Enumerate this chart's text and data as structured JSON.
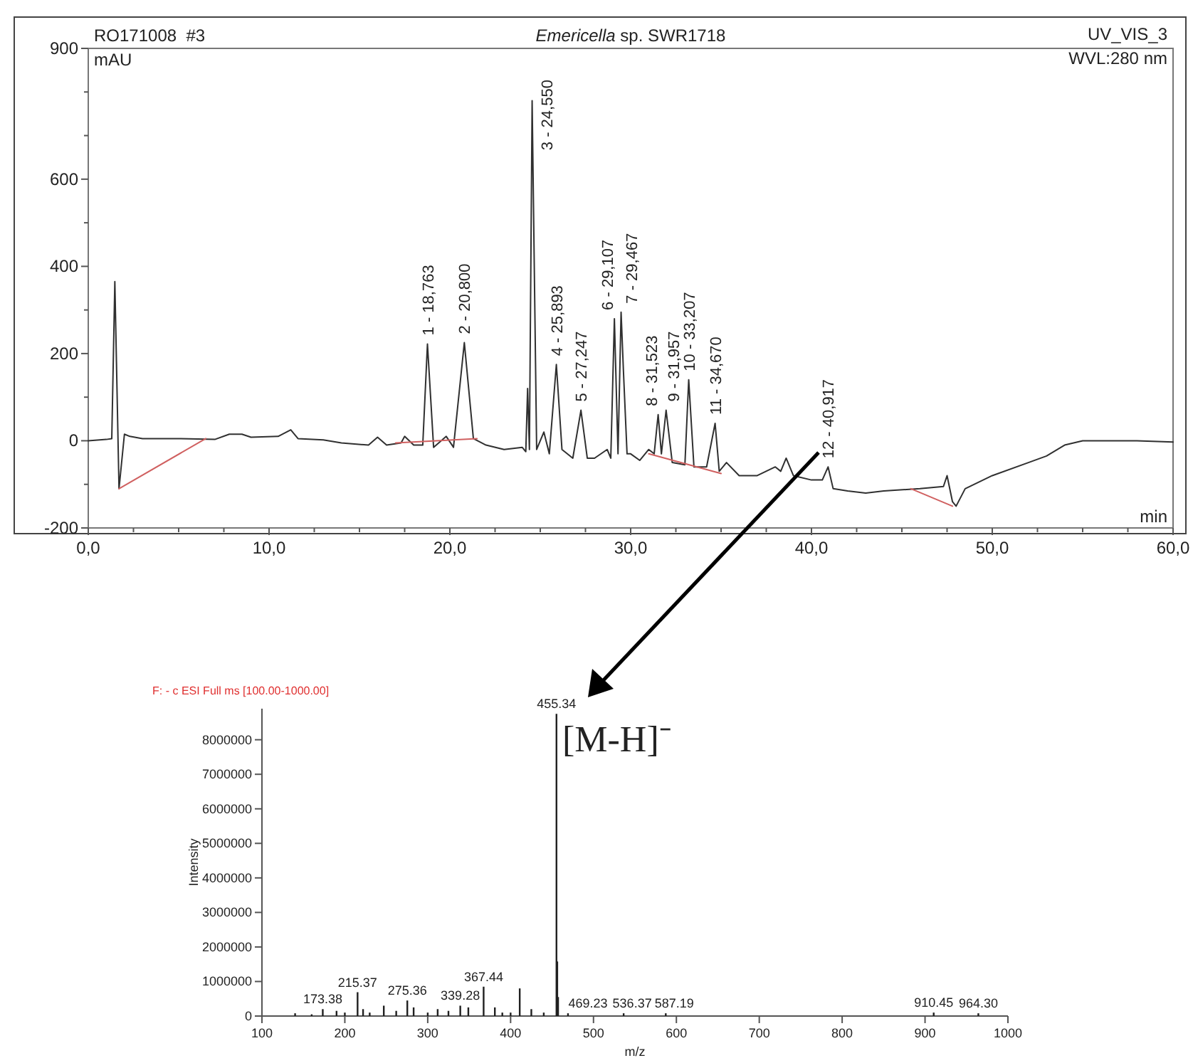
{
  "chart_data": [
    {
      "type": "line",
      "title": "Emericella sp. SWR1718",
      "xlabel": "min",
      "ylabel": "mAU",
      "xlim": [
        0,
        60
      ],
      "ylim": [
        -200,
        900
      ],
      "xticks": [
        {
          "value": 0,
          "label": "0,0"
        },
        {
          "value": 2.5,
          "label": null
        },
        {
          "value": 5,
          "label": null
        },
        {
          "value": 7.5,
          "label": null
        },
        {
          "value": 10,
          "label": "10,0"
        },
        {
          "value": 12.5,
          "label": null
        },
        {
          "value": 15,
          "label": null
        },
        {
          "value": 17.5,
          "label": null
        },
        {
          "value": 20,
          "label": "20,0"
        },
        {
          "value": 22.5,
          "label": null
        },
        {
          "value": 25,
          "label": null
        },
        {
          "value": 27.5,
          "label": null
        },
        {
          "value": 30,
          "label": "30,0"
        },
        {
          "value": 32.5,
          "label": null
        },
        {
          "value": 35,
          "label": null
        },
        {
          "value": 37.5,
          "label": null
        },
        {
          "value": 40,
          "label": "40,0"
        },
        {
          "value": 42.5,
          "label": null
        },
        {
          "value": 45,
          "label": null
        },
        {
          "value": 47.5,
          "label": null
        },
        {
          "value": 50,
          "label": "50,0"
        },
        {
          "value": 52.5,
          "label": null
        },
        {
          "value": 55,
          "label": null
        },
        {
          "value": 57.5,
          "label": null
        },
        {
          "value": 60,
          "label": "60,0"
        }
      ],
      "yticks": [
        -200,
        {
          "value": -100,
          "label": null
        },
        0,
        {
          "value": 100,
          "label": null
        },
        200,
        {
          "value": 300,
          "label": null
        },
        400,
        {
          "value": 500,
          "label": null
        },
        600,
        {
          "value": 700,
          "label": null
        },
        {
          "value": 800,
          "label": null
        },
        900
      ],
      "series": [
        {
          "color": "#303030",
          "x": [
            0,
            1,
            1.3,
            1.47,
            1.7,
            2.0,
            2.3,
            3,
            5,
            7,
            7.8,
            8.5,
            9,
            10.5,
            11.2,
            11.6,
            13,
            14,
            15.5,
            16,
            16.5,
            17.3,
            17.5,
            18,
            18.5,
            18.76,
            19.1,
            19.8,
            20.2,
            20.8,
            21.3,
            22,
            23,
            24,
            24.2,
            24.3,
            24.4,
            24.55,
            24.8,
            25.2,
            25.5,
            25.89,
            26.2,
            26.8,
            27.25,
            27.6,
            28,
            28.7,
            28.9,
            29.1,
            29.3,
            29.47,
            29.6,
            29.8,
            30,
            30.5,
            31,
            31.3,
            31.52,
            31.7,
            31.96,
            32.3,
            33,
            33.21,
            33.5,
            34.2,
            34.67,
            34.9,
            35.3,
            36,
            37,
            38,
            38.3,
            38.6,
            39,
            40,
            40.6,
            40.92,
            41.2,
            42,
            43,
            44,
            46,
            47.3,
            47.5,
            47.8,
            48,
            48.5,
            50,
            52,
            53,
            54,
            55,
            58,
            60
          ],
          "values": [
            0,
            3,
            5,
            365,
            -110,
            15,
            10,
            5,
            5,
            3,
            15,
            15,
            8,
            10,
            25,
            5,
            2,
            -5,
            -10,
            8,
            -10,
            -5,
            10,
            -10,
            -10,
            222,
            -15,
            10,
            -15,
            225,
            5,
            -10,
            -20,
            -15,
            -25,
            120,
            -20,
            780,
            -20,
            20,
            -30,
            175,
            -20,
            -40,
            70,
            -40,
            -40,
            -20,
            -40,
            280,
            -30,
            295,
            160,
            -30,
            -30,
            -45,
            -20,
            -30,
            60,
            -30,
            70,
            -50,
            -55,
            140,
            -60,
            -60,
            40,
            -70,
            -50,
            -80,
            -80,
            -60,
            -70,
            -40,
            -80,
            -90,
            -90,
            -60,
            -110,
            -115,
            -120,
            -115,
            -110,
            -105,
            -80,
            -140,
            -150,
            -110,
            -80,
            -50,
            -35,
            -10,
            0,
            0,
            -3
          ]
        },
        {
          "color": "#d06060",
          "x": [
            1.7,
            6.5,
            6.6,
            17,
            21.5,
            21.6,
            31,
            35,
            35.1,
            45.5,
            47.8
          ],
          "values": [
            -110,
            5,
            null,
            -5,
            5,
            null,
            -30,
            -75,
            null,
            -110,
            -150
          ]
        }
      ],
      "annotations": [
        "RO171008  #3",
        "UV_VIS_3",
        "WVL:280 nm",
        {
          "text": "1 - 18,763",
          "x": 18.76,
          "y": 222
        },
        {
          "text": "2 - 20,800",
          "x": 20.8,
          "y": 225
        },
        {
          "text": "3 - 24,550",
          "x": 24.55,
          "y": 780
        },
        {
          "text": "4 - 25,893",
          "x": 25.89,
          "y": 175
        },
        {
          "text": "5 - 27,247",
          "x": 27.25,
          "y": 70
        },
        {
          "text": "6 - 29,107",
          "x": 29.1,
          "y": 280
        },
        {
          "text": "7 - 29,467",
          "x": 29.47,
          "y": 295
        },
        {
          "text": "8 - 31,523",
          "x": 31.52,
          "y": 60
        },
        {
          "text": "9 - 31,957",
          "x": 31.96,
          "y": 70
        },
        {
          "text": "10 - 33,207",
          "x": 33.21,
          "y": 140
        },
        {
          "text": "11 - 34,670",
          "x": 34.67,
          "y": 40
        },
        {
          "text": "12 - 40,917",
          "x": 40.92,
          "y": -60
        }
      ]
    },
    {
      "type": "bar",
      "title": "F: - c ESI Full ms [100.00-1000.00]",
      "xlabel": "m/z",
      "ylabel": "Intensity",
      "color": "#202020",
      "xlim": [
        100,
        1000
      ],
      "ylim": [
        0,
        8900000
      ],
      "xticks": [
        100,
        200,
        300,
        400,
        500,
        600,
        700,
        800,
        900,
        1000
      ],
      "yticks": [
        0,
        1000000,
        2000000,
        3000000,
        4000000,
        5000000,
        6000000,
        7000000,
        8000000
      ],
      "x": [
        140,
        160,
        173.38,
        190,
        200,
        215.37,
        222,
        230,
        247,
        262,
        275.36,
        283,
        300,
        312,
        325,
        339.28,
        349,
        367.44,
        381,
        390,
        400,
        411,
        425,
        440,
        455.34,
        456.3,
        457.3,
        469.23,
        536.37,
        587.19,
        910.45,
        964.3
      ],
      "values": [
        80000,
        50000,
        200000,
        150000,
        100000,
        690000,
        200000,
        100000,
        300000,
        150000,
        450000,
        250000,
        100000,
        200000,
        150000,
        300000,
        250000,
        850000,
        250000,
        100000,
        100000,
        800000,
        200000,
        100000,
        8750000,
        1580000,
        550000,
        80000,
        80000,
        80000,
        100000,
        80000
      ],
      "annotations": [
        "[M-H]⁻",
        {
          "text": "173.38",
          "x": 173.38,
          "y": 200000
        },
        {
          "text": "215.37",
          "x": 215.37,
          "y": 690000
        },
        {
          "text": "275.36",
          "x": 275.36,
          "y": 450000
        },
        {
          "text": "339.28",
          "x": 339.28,
          "y": 300000
        },
        {
          "text": "367.44",
          "x": 367.44,
          "y": 850000
        },
        {
          "text": "455.34",
          "x": 455.34,
          "y": 8750000
        },
        {
          "text": "469.23",
          "x": 469.23,
          "y": 80000
        },
        {
          "text": "536.37",
          "x": 536.37,
          "y": 80000
        },
        {
          "text": "587.19",
          "x": 587.19,
          "y": 80000
        },
        {
          "text": "910.45",
          "x": 910.45,
          "y": 100000
        },
        {
          "text": "964.30",
          "x": 964.3,
          "y": 80000
        }
      ]
    }
  ]
}
